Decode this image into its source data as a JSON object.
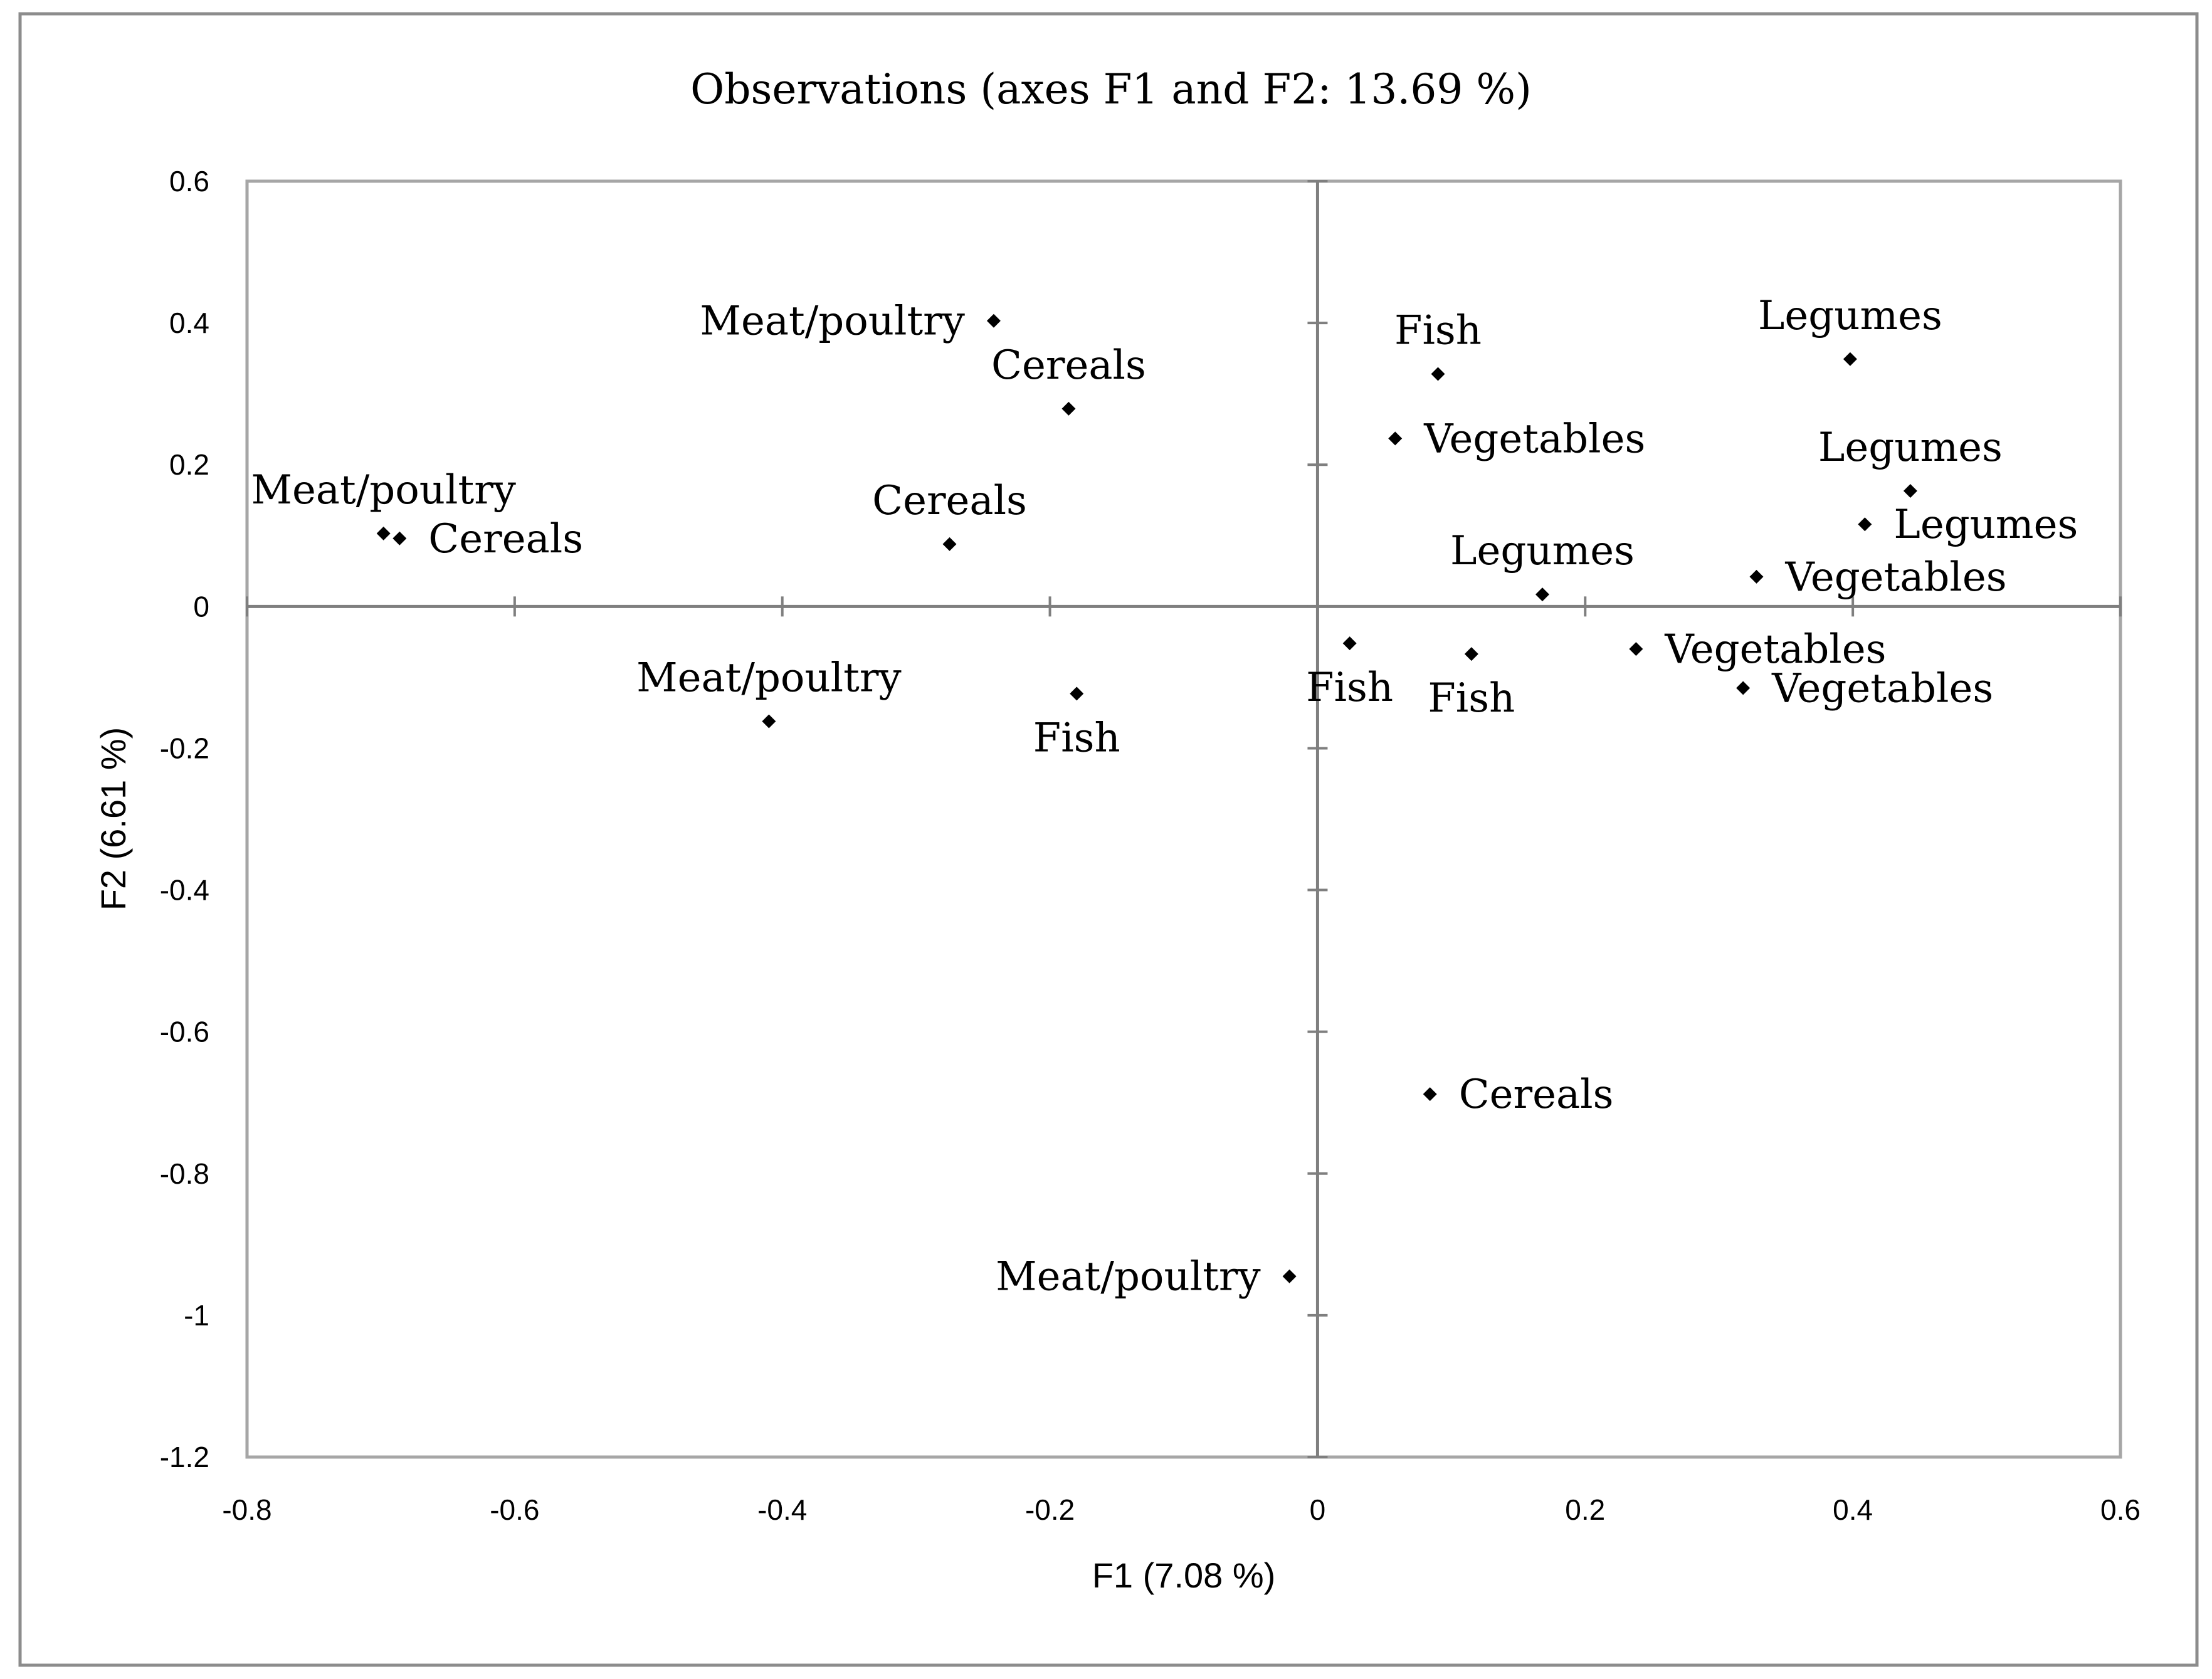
{
  "chart_data": {
    "type": "scatter",
    "title": "Observations (axes F1 and F2: 13.69 %)",
    "xlabel": "F1 (7.08 %)",
    "ylabel": "F2 (6.61 %)",
    "xlim": [
      -0.8,
      0.6
    ],
    "ylim": [
      -1.2,
      0.6
    ],
    "x_ticks": [
      "-0.8",
      "-0.6",
      "-0.4",
      "-0.2",
      "0",
      "0.2",
      "0.4",
      "0.6"
    ],
    "y_ticks": [
      "0.6",
      "0.4",
      "0.2",
      "0",
      "-0.2",
      "-0.4",
      "-0.6",
      "-0.8",
      "-1",
      "-1.2"
    ],
    "points": [
      {
        "label": "Meat/poultry",
        "x": -0.242,
        "y": 0.403,
        "label_pos": "left"
      },
      {
        "label": "Cereals",
        "x": -0.186,
        "y": 0.279,
        "label_pos": "above"
      },
      {
        "label": "Meat/poultry",
        "x": -0.698,
        "y": 0.103,
        "label_pos": "above"
      },
      {
        "label": "Cereals",
        "x": -0.686,
        "y": 0.096,
        "label_pos": "right"
      },
      {
        "label": "Cereals",
        "x": -0.275,
        "y": 0.088,
        "label_pos": "above"
      },
      {
        "label": "Meat/poultry",
        "x": -0.41,
        "y": -0.162,
        "label_pos": "above"
      },
      {
        "label": "Fish",
        "x": -0.18,
        "y": -0.123,
        "label_pos": "below"
      },
      {
        "label": "Fish",
        "x": 0.09,
        "y": 0.328,
        "label_pos": "above"
      },
      {
        "label": "Vegetables",
        "x": 0.058,
        "y": 0.237,
        "label_pos": "right"
      },
      {
        "label": "Legumes",
        "x": 0.398,
        "y": 0.349,
        "label_pos": "above"
      },
      {
        "label": "Legumes",
        "x": 0.443,
        "y": 0.163,
        "label_pos": "above"
      },
      {
        "label": "Legumes",
        "x": 0.409,
        "y": 0.116,
        "label_pos": "right"
      },
      {
        "label": "Legumes",
        "x": 0.168,
        "y": 0.017,
        "label_pos": "above"
      },
      {
        "label": "Vegetables",
        "x": 0.328,
        "y": 0.042,
        "label_pos": "right"
      },
      {
        "label": "Vegetables",
        "x": 0.238,
        "y": -0.06,
        "label_pos": "right"
      },
      {
        "label": "Vegetables",
        "x": 0.318,
        "y": -0.115,
        "label_pos": "right"
      },
      {
        "label": "Fish",
        "x": 0.024,
        "y": -0.052,
        "label_pos": "below"
      },
      {
        "label": "Fish",
        "x": 0.115,
        "y": -0.067,
        "label_pos": "below"
      },
      {
        "label": "Cereals",
        "x": 0.084,
        "y": -0.688,
        "label_pos": "right"
      },
      {
        "label": "Meat/poultry",
        "x": -0.021,
        "y": -0.945,
        "label_pos": "left"
      }
    ]
  }
}
